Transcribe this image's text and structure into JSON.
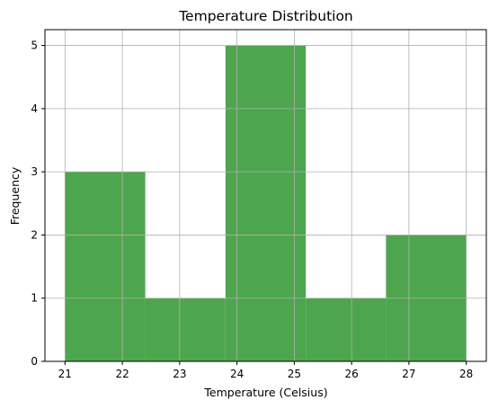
{
  "chart_data": {
    "type": "bar",
    "title": "Temperature Distribution",
    "xlabel": "Temperature (Celsius)",
    "ylabel": "Frequency",
    "bins": [
      {
        "start": 21.0,
        "end": 22.4,
        "count": 3
      },
      {
        "start": 22.4,
        "end": 23.8,
        "count": 1
      },
      {
        "start": 23.8,
        "end": 25.2,
        "count": 5
      },
      {
        "start": 25.2,
        "end": 26.6,
        "count": 1
      },
      {
        "start": 26.6,
        "end": 28.0,
        "count": 2
      }
    ],
    "xticks": [
      21,
      22,
      23,
      24,
      25,
      26,
      27,
      28
    ],
    "yticks": [
      0,
      1,
      2,
      3,
      4,
      5
    ],
    "xlim": [
      20.65,
      28.35
    ],
    "ylim": [
      0,
      5.25
    ],
    "grid": true,
    "bar_color": "#4da64d"
  }
}
